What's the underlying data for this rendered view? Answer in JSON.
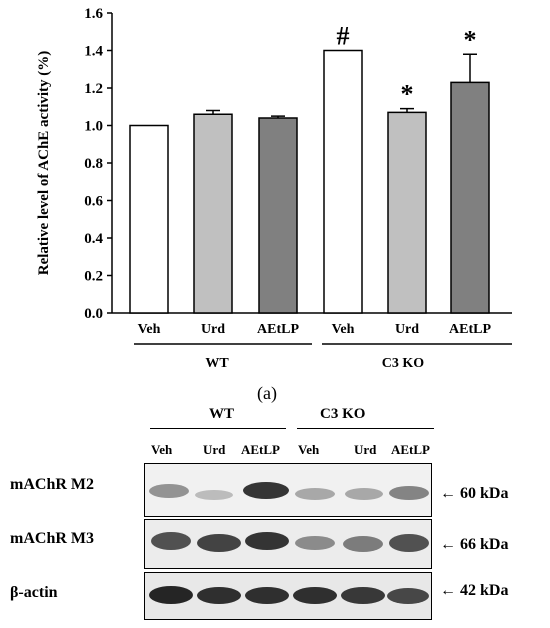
{
  "chart_data": {
    "type": "bar",
    "categories": [
      "Veh",
      "Urd",
      "AEtLP",
      "Veh",
      "Urd",
      "AEtLP"
    ],
    "groups": [
      {
        "label": "WT",
        "categories": [
          "Veh",
          "Urd",
          "AEtLP"
        ]
      },
      {
        "label": "C3 KO",
        "categories": [
          "Veh",
          "Urd",
          "AEtLP"
        ]
      }
    ],
    "values": [
      1.0,
      1.06,
      1.04,
      1.4,
      1.07,
      1.23
    ],
    "errors": [
      0.0,
      0.02,
      0.01,
      0.0,
      0.02,
      0.15
    ],
    "bar_colors": [
      "#ffffff",
      "#c0c0c0",
      "#808080",
      "#ffffff",
      "#c0c0c0",
      "#808080"
    ],
    "annotations": [
      "",
      "",
      "",
      "#",
      "*",
      "*"
    ],
    "ylabel": "Relative level of AChE activity (%)",
    "ylim": [
      0.0,
      1.6
    ],
    "yticks": [
      "0.0",
      "0.2",
      "0.4",
      "0.6",
      "0.8",
      "1.0",
      "1.2",
      "1.4",
      "1.6"
    ],
    "grid": false
  },
  "panel_label": "(a)",
  "western_blot": {
    "groups": [
      "WT",
      "C3 KO"
    ],
    "lanes": [
      "Veh",
      "Urd",
      "AEtLP",
      "Veh",
      "Urd",
      "AEtLP"
    ],
    "rows": [
      {
        "label": "mAChR  M2",
        "size": "← 60 kDa"
      },
      {
        "label": "mAChR  M3",
        "size": "← 66 kDa"
      },
      {
        "label": "β-actin",
        "size": "← 42 kDa"
      }
    ]
  }
}
